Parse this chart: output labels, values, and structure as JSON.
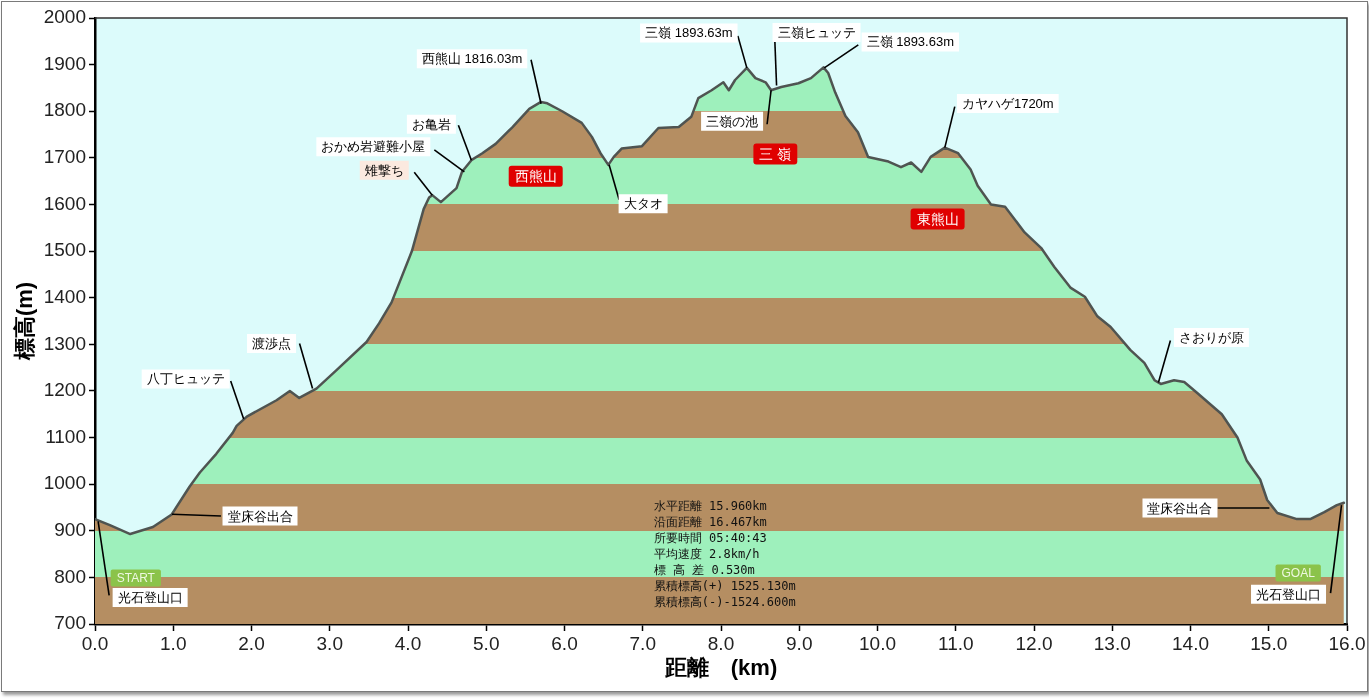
{
  "chart_data": {
    "type": "area",
    "xlabel": "距離　(km)",
    "ylabel": "標高(m)",
    "color": "#4f5451",
    "marker": "none",
    "x": [
      0,
      0.19,
      0.45,
      0.74,
      0.98,
      1.21,
      1.34,
      1.55,
      1.76,
      1.81,
      1.94,
      2.32,
      2.49,
      2.61,
      2.83,
      3.09,
      3.47,
      3.63,
      3.79,
      4.05,
      4.2,
      4.27,
      4.31,
      4.42,
      4.62,
      4.69,
      4.81,
      4.95,
      5.12,
      5.33,
      5.55,
      5.7,
      5.78,
      5.97,
      6.22,
      6.35,
      6.46,
      6.56,
      6.63,
      6.73,
      6.99,
      7.2,
      7.46,
      7.62,
      7.71,
      7.88,
      8.03,
      8.1,
      8.18,
      8.33,
      8.44,
      8.57,
      8.64,
      8.77,
      8.99,
      9.15,
      9.31,
      9.37,
      9.46,
      9.59,
      9.75,
      9.88,
      10.14,
      10.3,
      10.43,
      10.56,
      10.68,
      10.86,
      11.03,
      11.19,
      11.28,
      11.45,
      11.63,
      11.88,
      12.09,
      12.26,
      12.47,
      12.65,
      12.81,
      12.98,
      13.23,
      13.41,
      13.54,
      13.62,
      13.79,
      13.92,
      14.09,
      14.4,
      14.6,
      14.72,
      14.89,
      14.98,
      15.11,
      15.36,
      15.53,
      15.71,
      15.87,
      15.96
    ],
    "values": [
      925,
      912,
      893,
      908,
      935,
      995,
      1025,
      1065,
      1110,
      1125,
      1145,
      1180,
      1200,
      1185,
      1205,
      1245,
      1305,
      1345,
      1390,
      1500,
      1590,
      1615,
      1620,
      1605,
      1635,
      1670,
      1695,
      1710,
      1730,
      1765,
      1805,
      1820,
      1817,
      1800,
      1775,
      1745,
      1710,
      1685,
      1702,
      1720,
      1725,
      1764,
      1766,
      1788,
      1828,
      1845,
      1862,
      1845,
      1867,
      1893,
      1871,
      1862,
      1845,
      1852,
      1860,
      1871,
      1894,
      1882,
      1840,
      1790,
      1755,
      1702,
      1692,
      1680,
      1690,
      1670,
      1702,
      1722,
      1710,
      1675,
      1640,
      1600,
      1595,
      1540,
      1507,
      1466,
      1421,
      1402,
      1360,
      1337,
      1288,
      1260,
      1223,
      1215,
      1223,
      1219,
      1195,
      1150,
      1100,
      1050,
      1010,
      966,
      938,
      925,
      925,
      940,
      955,
      960
    ],
    "xlim": [
      0,
      16
    ],
    "xticks": [
      {
        "value": 0,
        "label": "0.0"
      },
      {
        "value": 1,
        "label": "1.0"
      },
      {
        "value": 2,
        "label": "2.0"
      },
      {
        "value": 3,
        "label": "3.0"
      },
      {
        "value": 4,
        "label": "4.0"
      },
      {
        "value": 5,
        "label": "5.0"
      },
      {
        "value": 6,
        "label": "6.0"
      },
      {
        "value": 7,
        "label": "7.0"
      },
      {
        "value": 8,
        "label": "8.0"
      },
      {
        "value": 9,
        "label": "9.0"
      },
      {
        "value": 10,
        "label": "10.0"
      },
      {
        "value": 11,
        "label": "11.0"
      },
      {
        "value": 12,
        "label": "12.0"
      },
      {
        "value": 13,
        "label": "13.0"
      },
      {
        "value": 14,
        "label": "14.0"
      },
      {
        "value": 15,
        "label": "15.0"
      },
      {
        "value": 16,
        "label": "16.0"
      }
    ],
    "ylim": [
      700,
      2000
    ],
    "yticks": [
      700,
      800,
      900,
      1000,
      1100,
      1200,
      1300,
      1400,
      1500,
      1600,
      1700,
      1800,
      1900,
      2000
    ],
    "annotations": [
      {
        "text": "光石登山口",
        "x": 0.04,
        "y": 920
      },
      "START",
      "堂床谷出合",
      {
        "text": "八丁ヒュッテ",
        "x": 1.9,
        "y": 1140
      },
      {
        "text": "渡渉点",
        "x": 2.78,
        "y": 1205
      },
      {
        "text": "雉撃ち",
        "x": 4.31,
        "y": 1620
      },
      {
        "text": "おかめ岩避難小屋",
        "x": 4.72,
        "y": 1670
      },
      {
        "text": "お亀岩",
        "x": 4.81,
        "y": 1695
      },
      {
        "text": "西熊山 1816.03m",
        "x": 5.7,
        "y": 1816
      },
      "西熊山",
      {
        "text": "大タオ",
        "x": 6.57,
        "y": 1685
      },
      {
        "text": "三嶺 1893.63m",
        "x": 8.33,
        "y": 1893
      },
      {
        "text": "三嶺ヒュッテ",
        "x": 8.71,
        "y": 1855
      },
      {
        "text": "三嶺の池",
        "x": 8.64,
        "y": 1845
      },
      {
        "text": "三嶺 1893.63m",
        "x": 9.32,
        "y": 1893
      },
      "三 嶺",
      {
        "text": "カヤハゲ1720m",
        "x": 10.86,
        "y": 1722
      },
      "東熊山",
      {
        "text": "さおりが原",
        "x": 13.59,
        "y": 1218
      },
      "堂床谷出合",
      {
        "text": "光石登山口",
        "x": 15.93,
        "y": 955
      },
      "GOAL",
      "水平距離 15.960km",
      "沿面距離 16.467km",
      "所要時間 05:40:43",
      "平均速度 2.8km/h",
      "標 高 差 0.530m",
      "累積標高(+) 1525.130m",
      "累積標高(-)-1524.600m"
    ]
  }
}
